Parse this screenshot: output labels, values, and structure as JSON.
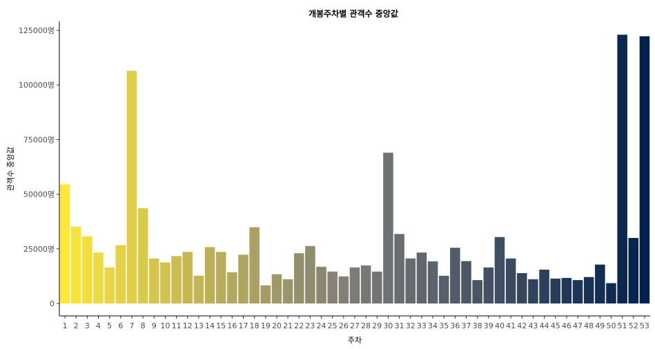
{
  "chart_data": {
    "type": "bar",
    "title": "개봉주차별 관객수 중앙값",
    "xlabel": "주차",
    "ylabel": "관객수 중앙값",
    "categories": [
      "1",
      "2",
      "3",
      "4",
      "5",
      "6",
      "7",
      "8",
      "9",
      "10",
      "11",
      "12",
      "13",
      "14",
      "15",
      "16",
      "17",
      "18",
      "19",
      "20",
      "21",
      "22",
      "23",
      "24",
      "25",
      "26",
      "27",
      "28",
      "29",
      "30",
      "31",
      "32",
      "33",
      "34",
      "35",
      "36",
      "37",
      "38",
      "39",
      "40",
      "41",
      "42",
      "43",
      "44",
      "45",
      "46",
      "47",
      "48",
      "49",
      "50",
      "51",
      "52",
      "53"
    ],
    "values": [
      54500,
      35200,
      30700,
      23300,
      16500,
      26700,
      106500,
      43600,
      20600,
      18800,
      21700,
      23600,
      12700,
      25800,
      23600,
      14300,
      22300,
      34900,
      8300,
      13400,
      11100,
      23000,
      26300,
      16800,
      14600,
      12400,
      16500,
      17400,
      14600,
      69000,
      31800,
      20600,
      23300,
      19300,
      12700,
      25500,
      19400,
      10700,
      16500,
      30400,
      20600,
      13900,
      11100,
      15500,
      11400,
      11700,
      10700,
      12100,
      17800,
      9300,
      123000,
      30000,
      122300
    ],
    "ylim": [
      0,
      129000
    ],
    "yticks": [
      0,
      25000,
      50000,
      75000,
      100000,
      125000
    ],
    "ytick_labels": [
      "0",
      "25000명",
      "50000명",
      "75000명",
      "100000명",
      "125000명"
    ],
    "colors": {
      "start": "#fde737",
      "mid": "#7c7b78",
      "end": "#00204d"
    },
    "grid": false,
    "legend": "none"
  }
}
